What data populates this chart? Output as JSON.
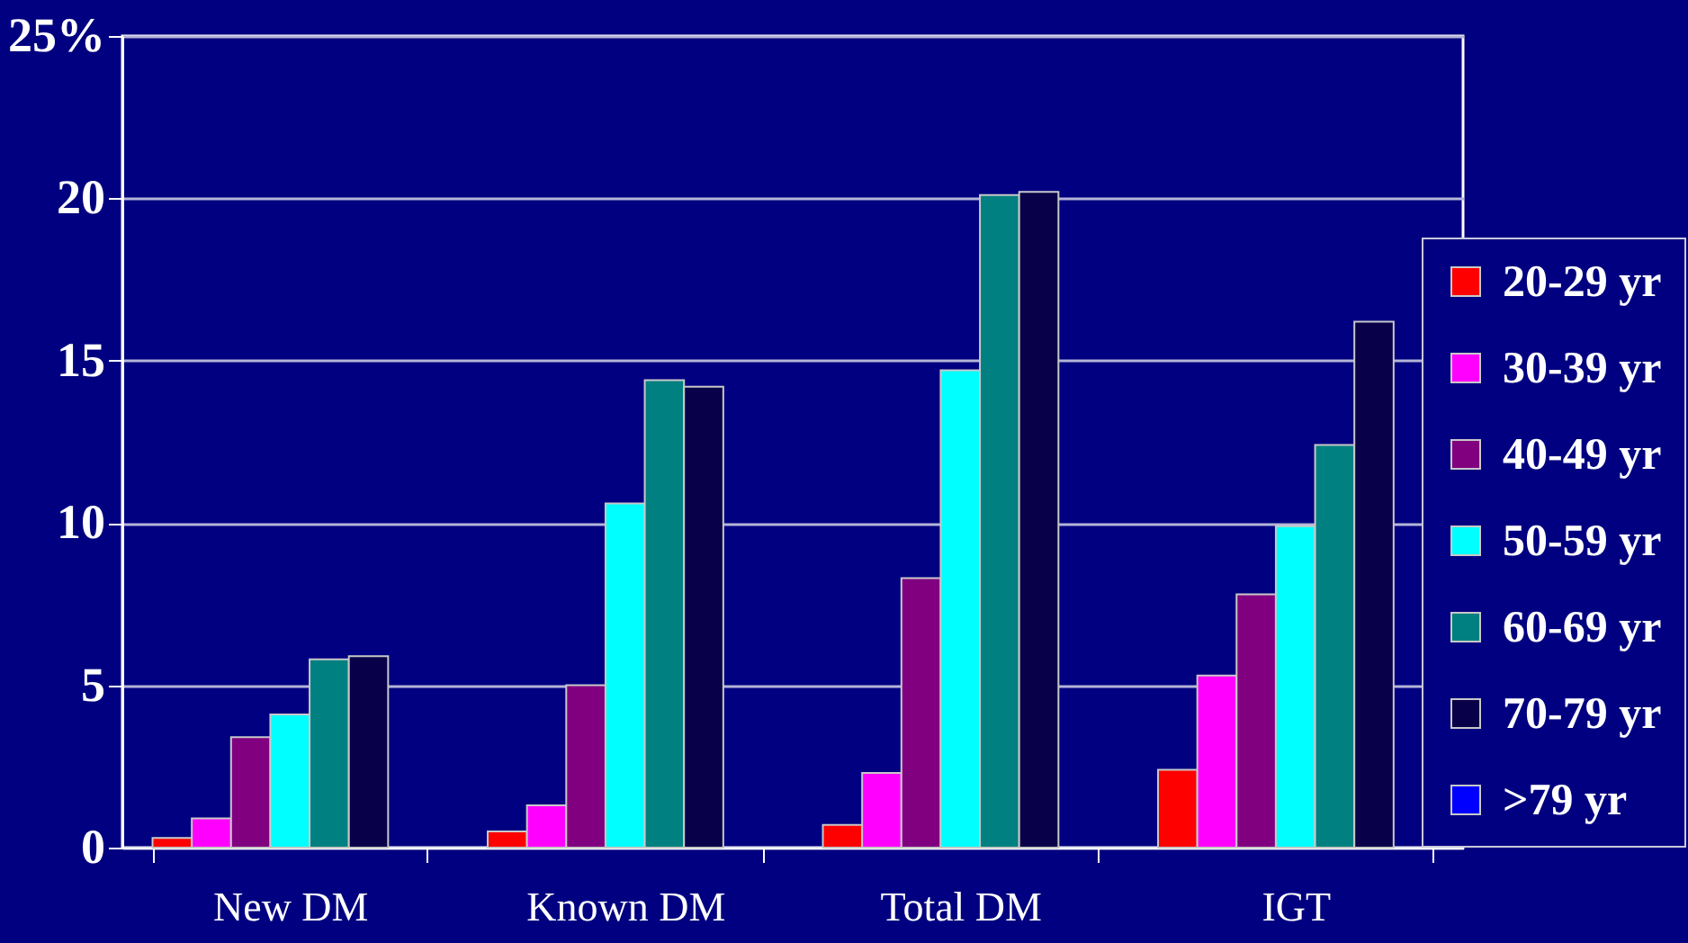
{
  "chart_data": {
    "type": "bar",
    "categories": [
      "New DM",
      "Known DM",
      "Total DM",
      "IGT"
    ],
    "series": [
      {
        "name": "20-29 yr",
        "color": "#ff0000",
        "values": [
          0.3,
          0.5,
          0.7,
          2.4
        ]
      },
      {
        "name": "30-39 yr",
        "color": "#ff00ff",
        "values": [
          0.9,
          1.3,
          2.3,
          5.3
        ]
      },
      {
        "name": "40-49 yr",
        "color": "#800080",
        "values": [
          3.4,
          5.0,
          8.3,
          7.8
        ]
      },
      {
        "name": "50-59 yr",
        "color": "#00ffff",
        "values": [
          4.1,
          10.6,
          14.7,
          9.9
        ]
      },
      {
        "name": "60-69 yr",
        "color": "#008080",
        "values": [
          5.8,
          14.4,
          20.1,
          12.4
        ]
      },
      {
        "name": "70-79 yr",
        "color": "#080048",
        "values": [
          5.9,
          14.2,
          20.2,
          16.2
        ]
      },
      {
        "name": ">79 yr",
        "color": "#0000ff",
        "values": [
          null,
          null,
          null,
          null
        ]
      }
    ],
    "ylim": [
      0,
      25
    ],
    "yticks": [
      0,
      5,
      10,
      15,
      20,
      {
        "value": 25,
        "label": "25%"
      }
    ],
    "grid": "y",
    "legend": "right"
  }
}
